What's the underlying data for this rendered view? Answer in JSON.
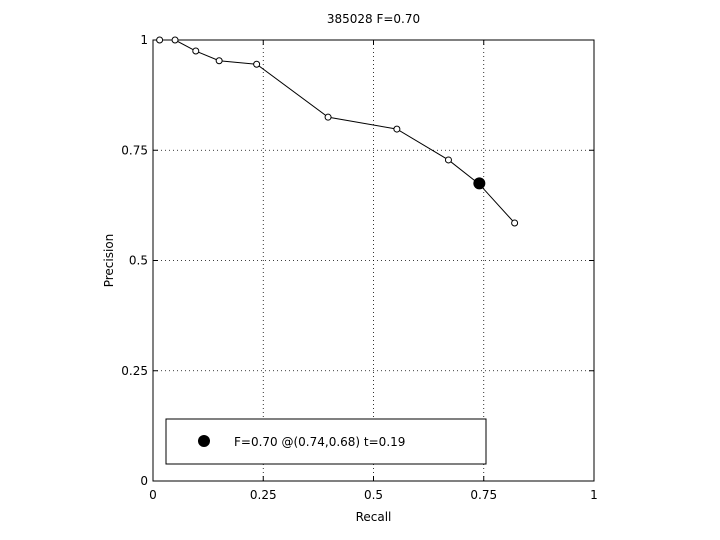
{
  "chart_data": {
    "type": "line",
    "title": "385028 F=0.70",
    "xlabel": "Recall",
    "ylabel": "Precision",
    "xlim": [
      0,
      1
    ],
    "ylim": [
      0,
      1
    ],
    "xticks": [
      0,
      0.25,
      0.5,
      0.75,
      1
    ],
    "yticks": [
      0,
      0.25,
      0.5,
      0.75,
      1
    ],
    "xtick_labels": [
      "0",
      "0.25",
      "0.5",
      "0.75",
      "1"
    ],
    "ytick_labels": [
      "0",
      "0.25",
      "0.5",
      "0.75",
      "1"
    ],
    "grid": true,
    "series": [
      {
        "x": [
          0.015,
          0.05,
          0.097,
          0.15,
          0.235,
          0.397,
          0.553,
          0.67,
          0.74,
          0.82
        ],
        "y": [
          1.0,
          1.0,
          0.975,
          0.953,
          0.945,
          0.825,
          0.798,
          0.728,
          0.673,
          0.585
        ],
        "marker": "open-circle",
        "color": "#000000"
      }
    ],
    "highlight_point": {
      "x": 0.74,
      "y": 0.675,
      "marker": "filled-circle",
      "color": "#000000"
    },
    "legend": {
      "position": "bottom",
      "label": "F=0.70 @(0.74,0.68) t=0.19"
    }
  }
}
